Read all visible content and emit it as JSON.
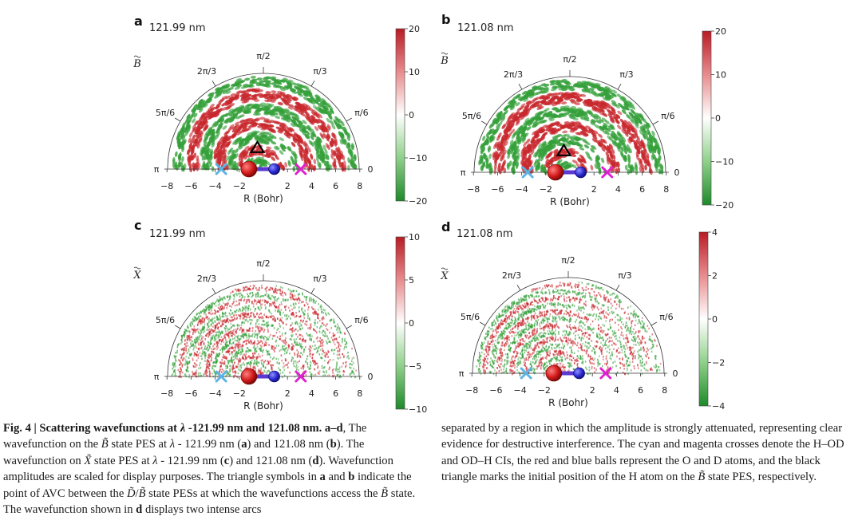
{
  "panels": [
    {
      "letter": "a",
      "wavelength": "121.99 nm",
      "state_glyph": "B",
      "colorbar_ticks": [
        "20",
        "10",
        "0",
        "−10",
        "−20"
      ],
      "vmax": 20,
      "pattern": "strong"
    },
    {
      "letter": "b",
      "wavelength": "121.08 nm",
      "state_glyph": "B",
      "colorbar_ticks": [
        "20",
        "10",
        "0",
        "−10",
        "−20"
      ],
      "vmax": 20,
      "pattern": "strong"
    },
    {
      "letter": "c",
      "wavelength": "121.99 nm",
      "state_glyph": "X",
      "colorbar_ticks": [
        "10",
        "5",
        "0",
        "−5",
        "−10"
      ],
      "vmax": 10,
      "pattern": "fine"
    },
    {
      "letter": "d",
      "wavelength": "121.08 nm",
      "state_glyph": "X",
      "colorbar_ticks": [
        "4",
        "2",
        "0",
        "−2",
        "−4"
      ],
      "vmax": 4,
      "pattern": "fine"
    }
  ],
  "angle_labels": [
    "π/2",
    "π/3",
    "2π/3",
    "π/6",
    "5π/6",
    "0",
    "π"
  ],
  "x_ticks": [
    "−8",
    "−6",
    "−4",
    "−2",
    "2",
    "4",
    "6",
    "8"
  ],
  "x_label": "R (Bohr)",
  "colors": {
    "positive": "#c8282d",
    "negative": "#35a03a",
    "cyan_cross": "#5ab4e6",
    "magenta_cross": "#e020d0",
    "o_atom": "#d01818",
    "d_atom": "#2a2ad0",
    "triangle": "#000000"
  },
  "caption": {
    "fig_label": "Fig. 4 | Scattering wavefunctions at ",
    "lambda1": "λ",
    "title_rest": " -121.99  nm and 121.08  nm. a–d",
    "t1": ", The wavefunction on the ",
    "bstate": "B̃",
    "t2": " state PES at ",
    "lambda2": "λ",
    "t3": " - 121.99 nm (",
    "ref_a": "a",
    "t4": ") and 121.08 nm (",
    "ref_b": "b",
    "t5": "). The wavefunction on ",
    "xstate": "X̃",
    "t6": " state PES at ",
    "lambda3": "λ",
    "t7": " - 121.99 nm (",
    "ref_c": "c",
    "t8": ") and 121.08 nm (",
    "ref_d": "d",
    "t9": "). Wavefunction amplitudes are scaled for display purposes. The triangle symbols in ",
    "ref_a2": "a",
    "t10": " and ",
    "ref_b2": "b",
    "t11": " indicate the point of AVC between the ",
    "dstate": "D̃",
    "slash": "/",
    "bstate2": "B̃",
    "t12": " state PESs at which the wavefunctions access the ",
    "bstate3": "B̃",
    "t13": " state. The wavefunction shown in ",
    "ref_d2": "d",
    "t14": " displays two intense arcs ",
    "t15": "separated by a region in which the amplitude is strongly attenuated, representing clear evidence for destructive interference. The cyan and magenta crosses denote the H–OD and OD–H CIs, the red and blue balls represent the O and D atoms, and the black triangle marks the initial position of the H atom on the ",
    "bstate4": "B̃",
    "t16": " state PES, respectively."
  }
}
